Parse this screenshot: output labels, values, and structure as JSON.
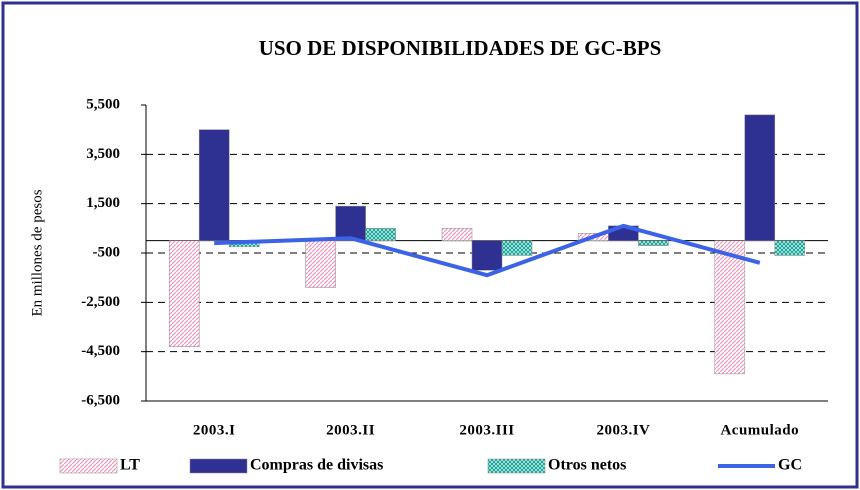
{
  "chart_data": {
    "type": "bar",
    "title": "USO DE DISPONIBILIDADES DE GC-BPS",
    "y_label": "En millones de pesos",
    "categories": [
      "2003.I",
      "2003.II",
      "2003.III",
      "2003.IV",
      "Acumulado"
    ],
    "series": [
      {
        "name": "LT",
        "color": "#f29bc4",
        "values": [
          -4300,
          -1900,
          500,
          300,
          -5400
        ]
      },
      {
        "name": "Compras de divisas",
        "color": "#2e3192",
        "values": [
          4500,
          1400,
          -1200,
          600,
          5100
        ]
      },
      {
        "name": "Otros netos",
        "color": "#1aa89c",
        "values": [
          -250,
          500,
          -600,
          -200,
          -600
        ]
      },
      {
        "name": "GC",
        "color": "#3b63e8",
        "type": "line",
        "values": [
          -100,
          100,
          -1400,
          600,
          -900
        ]
      }
    ],
    "ylim": [
      -6500,
      5500
    ],
    "yticks": [
      {
        "value": 5500,
        "label": "5,500"
      },
      {
        "value": 3500,
        "label": "3,500"
      },
      {
        "value": 1500,
        "label": "1,500"
      },
      -500,
      {
        "value": -2500,
        "label": "-2,500"
      },
      {
        "value": -4500,
        "label": "-4,500"
      },
      {
        "value": -6500,
        "label": "-6,500"
      }
    ],
    "grid": true,
    "legend": "bottom"
  }
}
